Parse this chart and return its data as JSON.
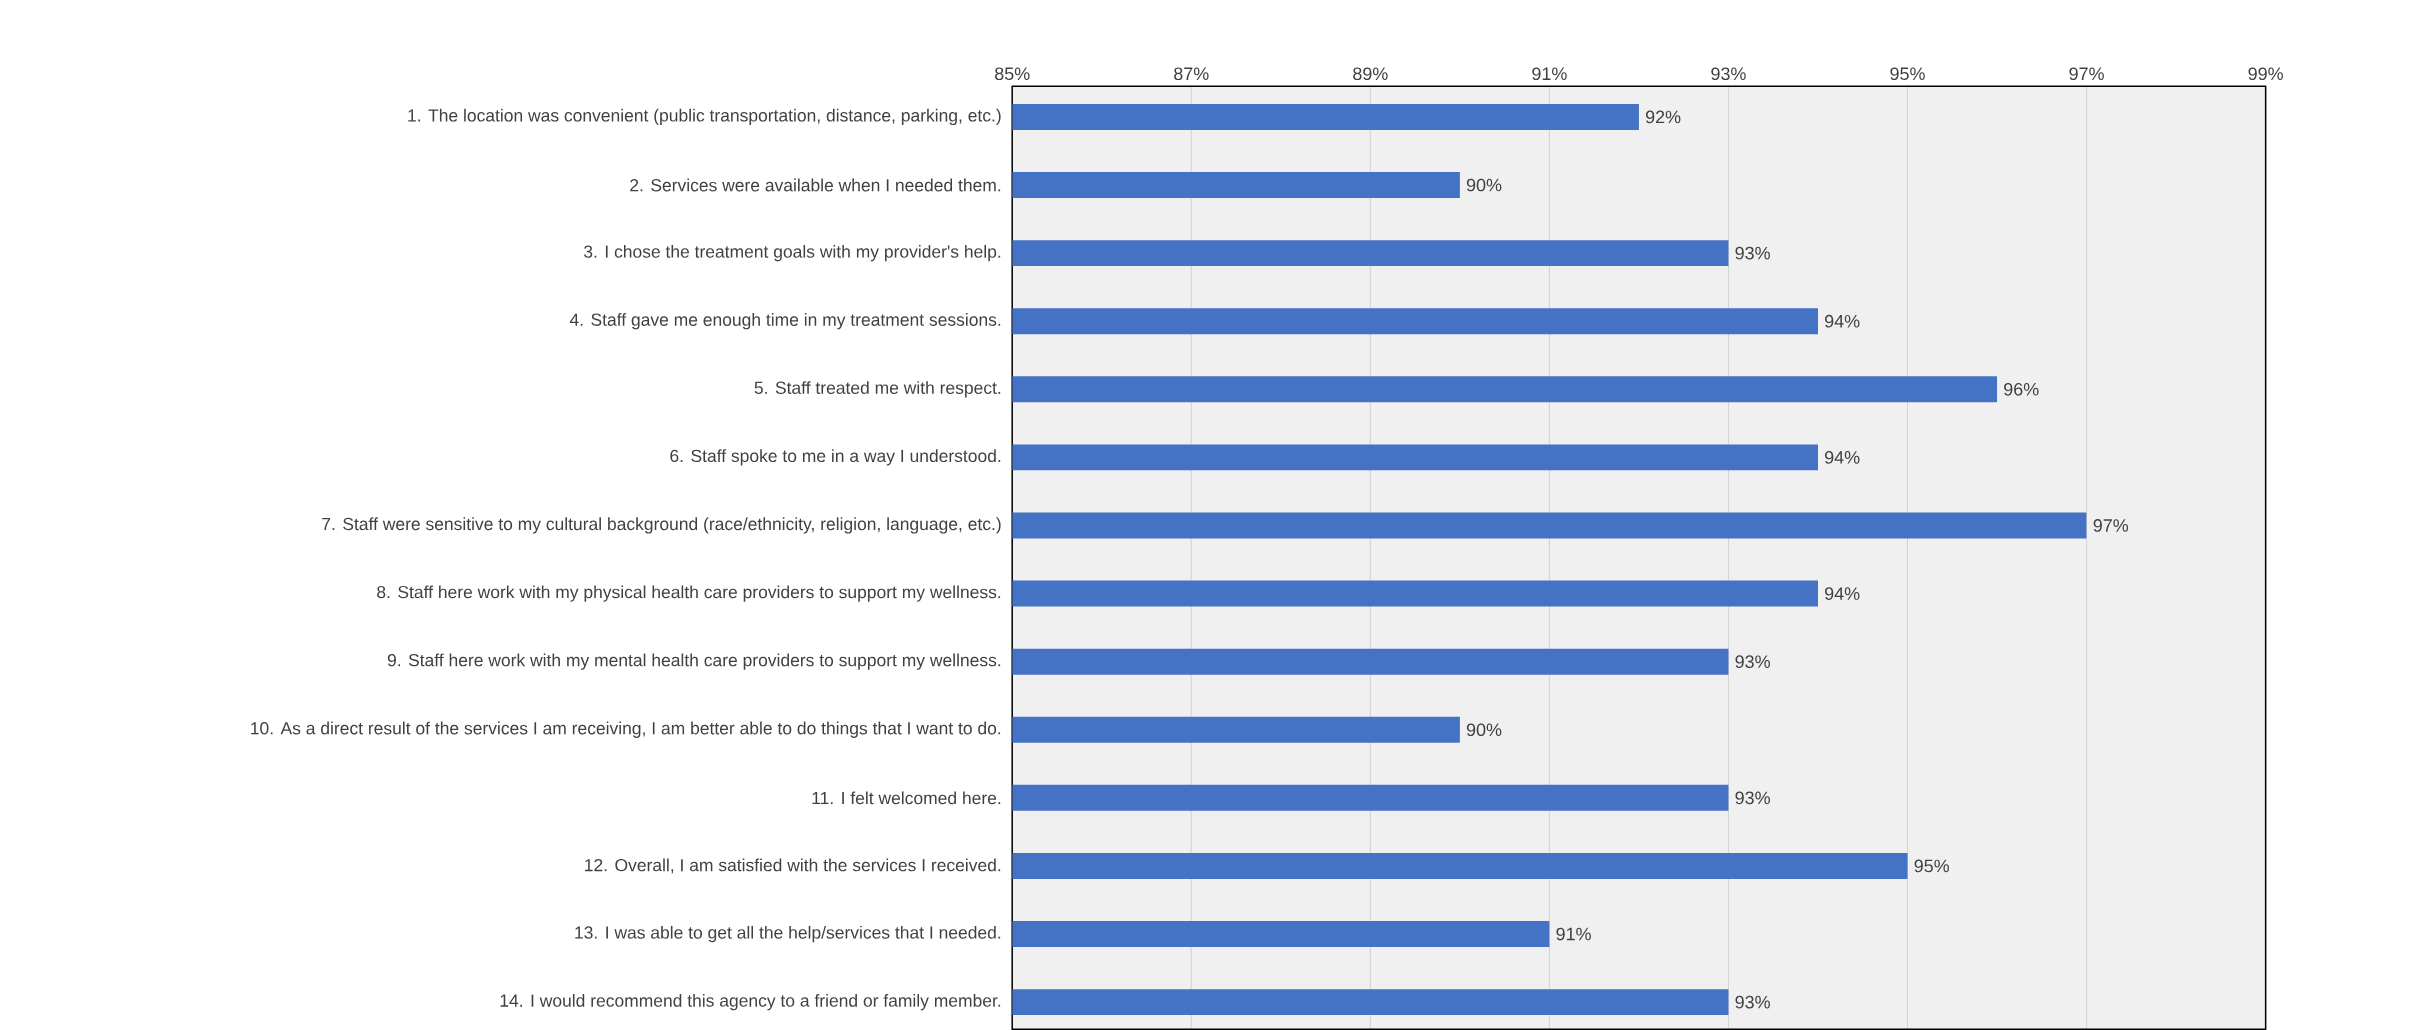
{
  "chart_data": {
    "type": "bar",
    "orientation": "horizontal",
    "categories": [
      "1. The location was convenient (public transportation, distance, parking, etc.)",
      "2. Services were available when I needed them.",
      "3. I chose the treatment goals with my provider's help.",
      "4. Staff gave me enough time in my treatment sessions.",
      "5. Staff treated me with respect.",
      "6. Staff spoke to me in a way I understood.",
      "7. Staff were sensitive to my cultural background (race/ethnicity, religion, language, etc.)",
      "8. Staff here work with my physical health care providers to support my wellness.",
      "9. Staff here work with my mental health care providers to support my wellness.",
      "10. As a direct result of the services I am receiving, I am better able to do things that I want to do.",
      "11. I felt welcomed here.",
      "12. Overall, I am satisfied with the services I received.",
      "13. I was able to get all the help/services that I needed.",
      "14. I would recommend this agency to a friend or family member."
    ],
    "values": [
      92,
      90,
      93,
      94,
      96,
      94,
      97,
      94,
      93,
      90,
      93,
      95,
      91,
      93
    ],
    "value_labels": [
      "92%",
      "90%",
      "93%",
      "94%",
      "96%",
      "94%",
      "97%",
      "94%",
      "93%",
      "90%",
      "93%",
      "95%",
      "91%",
      "93%"
    ],
    "color": "#4472c4",
    "xlim": [
      85,
      99
    ],
    "xticks": [
      {
        "value": 85,
        "label": "85%"
      },
      {
        "value": 87,
        "label": "87%"
      },
      {
        "value": 89,
        "label": "89%"
      },
      {
        "value": 91,
        "label": "91%"
      },
      {
        "value": 93,
        "label": "93%"
      },
      {
        "value": 95,
        "label": "95%"
      },
      {
        "value": 97,
        "label": "97%"
      },
      {
        "value": 99,
        "label": "99%"
      }
    ],
    "grid": "x"
  }
}
